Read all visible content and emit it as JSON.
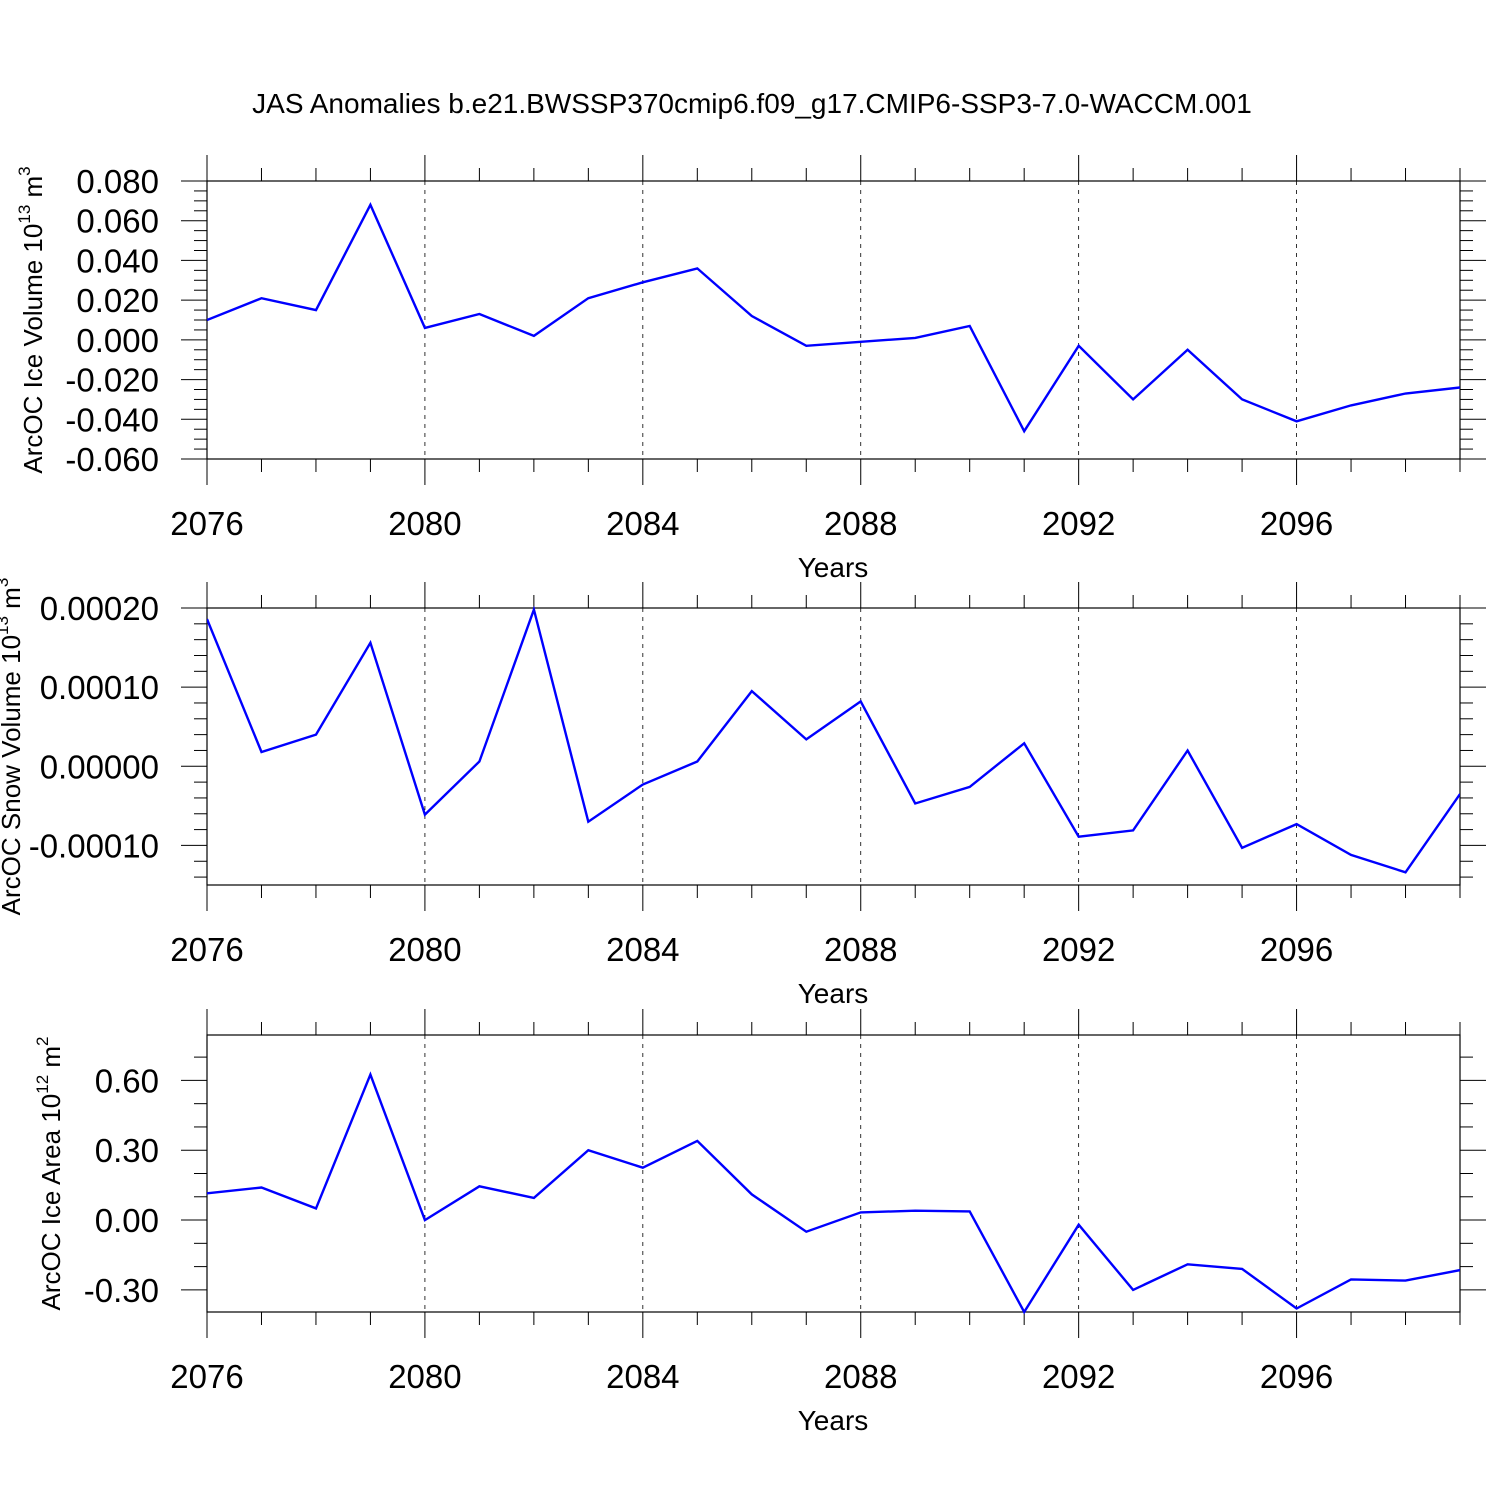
{
  "chart_data": {
    "title": "JAS Anomalies b.e21.BWSSP370cmip6.f09_g17.CMIP6-SSP3-7.0-WACCM.001",
    "panels": [
      {
        "type": "line",
        "ylabel_main": "ArcOC Ice Volume 10",
        "ylabel_exp": "13",
        "ylabel_unit": " m",
        "ylabel_unit_exp": "3",
        "xlabel": "Years",
        "xlim": [
          2076,
          2099
        ],
        "ylim": [
          -0.06,
          0.08
        ],
        "yticks": [
          -0.06,
          -0.04,
          -0.02,
          0.0,
          0.02,
          0.04,
          0.06,
          0.08
        ],
        "ytick_labels": [
          "-0.060",
          "-0.040",
          "-0.020",
          "0.000",
          "0.020",
          "0.040",
          "0.060",
          "0.080"
        ],
        "yminor_step": 0.005,
        "xticks": [
          2076,
          2080,
          2084,
          2088,
          2092,
          2096
        ],
        "xtick_labels": [
          "2076",
          "2080",
          "2084",
          "2088",
          "2092",
          "2096"
        ],
        "color": "#0000ff",
        "x": [
          2076,
          2077,
          2078,
          2079,
          2080,
          2081,
          2082,
          2083,
          2084,
          2085,
          2086,
          2087,
          2088,
          2089,
          2090,
          2091,
          2092,
          2093,
          2094,
          2095,
          2096,
          2097,
          2098,
          2099
        ],
        "values": [
          0.01,
          0.021,
          0.015,
          0.068,
          0.006,
          0.013,
          0.002,
          0.021,
          0.029,
          0.036,
          0.012,
          -0.003,
          -0.001,
          0.001,
          0.007,
          -0.046,
          -0.003,
          -0.03,
          -0.005,
          -0.03,
          -0.041,
          -0.033,
          -0.027,
          -0.024
        ]
      },
      {
        "type": "line",
        "ylabel_main": "ArcOC Snow Volume 10",
        "ylabel_exp": "13",
        "ylabel_unit": " m",
        "ylabel_unit_exp": "3",
        "xlabel": "Years",
        "xlim": [
          2076,
          2099
        ],
        "ylim": [
          -0.00015,
          0.0002
        ],
        "yticks": [
          -0.0001,
          0.0,
          0.0001,
          0.0002
        ],
        "ytick_labels": [
          "-0.00010",
          "0.00000",
          "0.00010",
          "0.00020"
        ],
        "yminor_step": 2e-05,
        "xticks": [
          2076,
          2080,
          2084,
          2088,
          2092,
          2096
        ],
        "xtick_labels": [
          "2076",
          "2080",
          "2084",
          "2088",
          "2092",
          "2096"
        ],
        "color": "#0000ff",
        "x": [
          2076,
          2077,
          2078,
          2079,
          2080,
          2081,
          2082,
          2083,
          2084,
          2085,
          2086,
          2087,
          2088,
          2089,
          2090,
          2091,
          2092,
          2093,
          2094,
          2095,
          2096,
          2097,
          2098,
          2099
        ],
        "values": [
          0.000186,
          1.8e-05,
          4e-05,
          0.000156,
          -6.1e-05,
          6e-06,
          0.000198,
          -7e-05,
          -2.3e-05,
          6e-06,
          9.5e-05,
          3.4e-05,
          8.2e-05,
          -4.7e-05,
          -2.6e-05,
          2.9e-05,
          -8.9e-05,
          -8.1e-05,
          2e-05,
          -0.000103,
          -7.3e-05,
          -0.000112,
          -0.000134,
          -3.5e-05
        ]
      },
      {
        "type": "line",
        "ylabel_main": "ArcOC Ice Area 10",
        "ylabel_exp": "12",
        "ylabel_unit": " m",
        "ylabel_unit_exp": "2",
        "xlabel": "Years",
        "xlim": [
          2076,
          2099
        ],
        "ylim": [
          -0.395,
          0.795
        ],
        "yticks": [
          -0.3,
          0.0,
          0.3,
          0.6
        ],
        "ytick_labels": [
          "-0.30",
          "0.00",
          "0.30",
          "0.60"
        ],
        "yminor_step": 0.1,
        "xticks": [
          2076,
          2080,
          2084,
          2088,
          2092,
          2096
        ],
        "xtick_labels": [
          "2076",
          "2080",
          "2084",
          "2088",
          "2092",
          "2096"
        ],
        "color": "#0000ff",
        "x": [
          2076,
          2077,
          2078,
          2079,
          2080,
          2081,
          2082,
          2083,
          2084,
          2085,
          2086,
          2087,
          2088,
          2089,
          2090,
          2091,
          2092,
          2093,
          2094,
          2095,
          2096,
          2097,
          2098,
          2099
        ],
        "values": [
          0.115,
          0.14,
          0.05,
          0.625,
          0.0,
          0.145,
          0.095,
          0.3,
          0.225,
          0.34,
          0.11,
          -0.05,
          0.033,
          0.04,
          0.037,
          -0.395,
          -0.02,
          -0.3,
          -0.19,
          -0.21,
          -0.38,
          -0.255,
          -0.26,
          -0.215
        ]
      }
    ]
  }
}
